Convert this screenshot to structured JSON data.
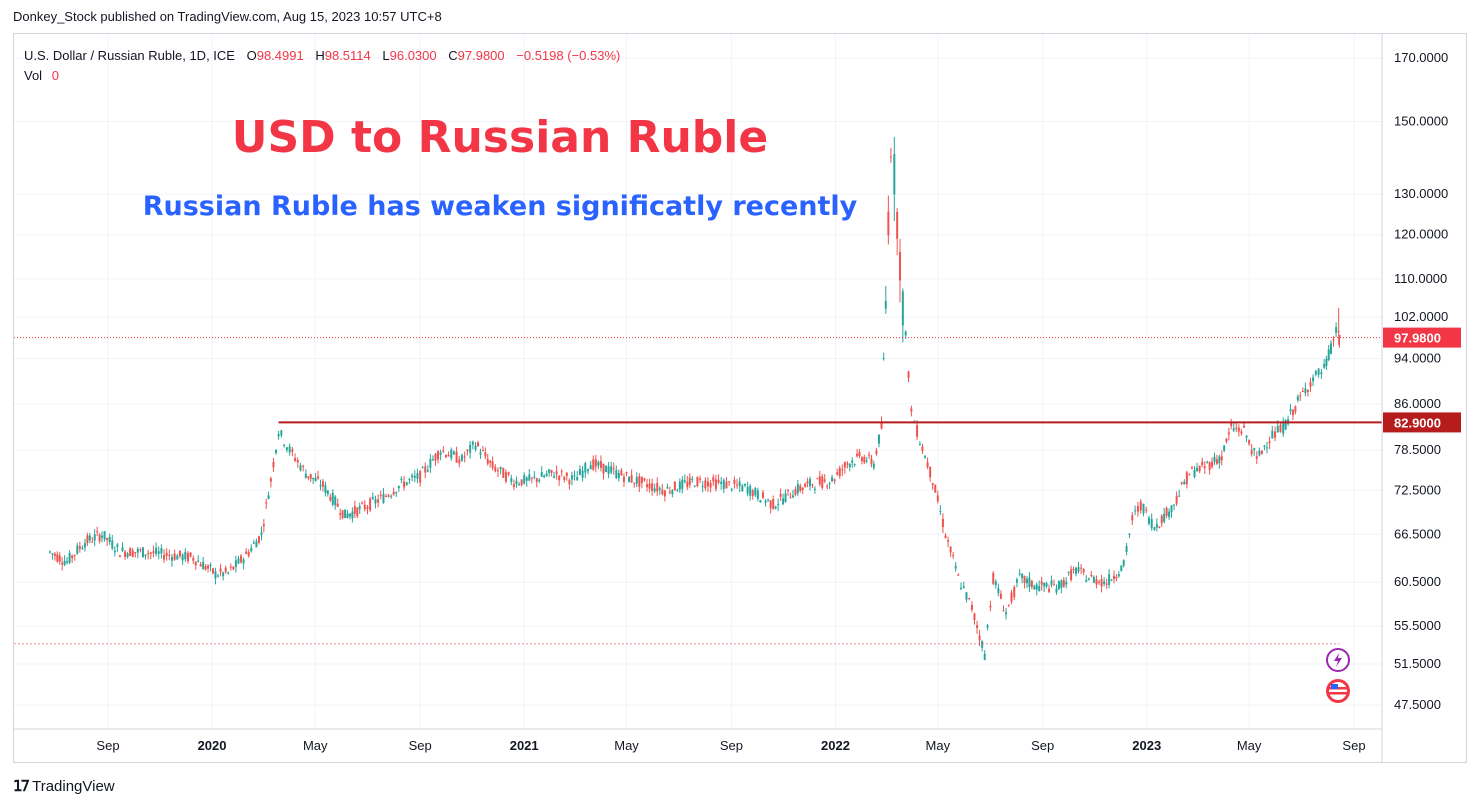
{
  "caption": "Donkey_Stock published on TradingView.com, Aug 15, 2023 10:57 UTC+8",
  "branding": "TradingView",
  "legend": {
    "symbol": "U.S. Dollar / Russian Ruble, 1D, ICE",
    "open_label": "O",
    "open": "98.4991",
    "high_label": "H",
    "high": "98.5114",
    "low_label": "L",
    "low": "96.0300",
    "close_label": "C",
    "close": "97.9800",
    "change": "−0.5198 (−0.53%)",
    "vol_label": "Vol",
    "vol": "0"
  },
  "colors": {
    "up": "#26a69a",
    "down": "#ef5350",
    "title": "#f23645",
    "subtitle": "#2962ff",
    "level_line": "#b71c1c",
    "price_tag": "#f23645",
    "grid": "#f0f3fa"
  },
  "icons": [
    "lightning-icon",
    "us-flag-icon"
  ],
  "chart_data": {
    "type": "candlestick",
    "title": "USD to Russian Ruble",
    "subtitle": "Russian Ruble has weaken significatly recently",
    "y_scale": "log",
    "y_ticks": [
      "170.0000",
      "150.0000",
      "130.0000",
      "120.0000",
      "110.0000",
      "102.0000",
      "94.0000",
      "86.0000",
      "78.5000",
      "72.5000",
      "66.5000",
      "60.5000",
      "55.5000",
      "51.5000",
      "47.5000"
    ],
    "x_ticks": [
      "Sep",
      "2020",
      "May",
      "Sep",
      "2021",
      "May",
      "Sep",
      "2022",
      "May",
      "Sep",
      "2023",
      "May",
      "Sep"
    ],
    "x_range": [
      "2019-07",
      "2023-09"
    ],
    "current_price": "97.9800",
    "horizontal_level": {
      "value": 82.9,
      "label": "82.9000"
    },
    "series": [
      {
        "name": "USD/RUB",
        "points": [
          [
            "2019-06-25",
            64.2
          ],
          [
            "2019-07-15",
            63.0
          ],
          [
            "2019-08-05",
            65.5
          ],
          [
            "2019-08-25",
            66.5
          ],
          [
            "2019-09-15",
            64.3
          ],
          [
            "2019-10-15",
            64.2
          ],
          [
            "2019-11-15",
            63.8
          ],
          [
            "2019-12-10",
            63.5
          ],
          [
            "2020-01-05",
            61.5
          ],
          [
            "2020-01-20",
            61.6
          ],
          [
            "2020-02-10",
            63.8
          ],
          [
            "2020-02-28",
            66.5
          ],
          [
            "2020-03-10",
            74.0
          ],
          [
            "2020-03-19",
            81.5
          ],
          [
            "2020-04-01",
            78.5
          ],
          [
            "2020-04-20",
            75.0
          ],
          [
            "2020-05-10",
            73.2
          ],
          [
            "2020-06-05",
            69.0
          ],
          [
            "2020-06-25",
            70.0
          ],
          [
            "2020-07-20",
            71.5
          ],
          [
            "2020-08-10",
            73.4
          ],
          [
            "2020-09-01",
            74.5
          ],
          [
            "2020-09-25",
            78.5
          ],
          [
            "2020-10-20",
            77.0
          ],
          [
            "2020-11-05",
            79.5
          ],
          [
            "2020-11-25",
            76.0
          ],
          [
            "2020-12-20",
            73.8
          ],
          [
            "2021-01-10",
            74.0
          ],
          [
            "2021-02-05",
            75.0
          ],
          [
            "2021-03-01",
            74.0
          ],
          [
            "2021-03-20",
            76.5
          ],
          [
            "2021-04-10",
            75.5
          ],
          [
            "2021-05-10",
            74.0
          ],
          [
            "2021-06-15",
            72.5
          ],
          [
            "2021-07-20",
            73.8
          ],
          [
            "2021-08-20",
            73.5
          ],
          [
            "2021-09-20",
            72.8
          ],
          [
            "2021-10-20",
            70.5
          ],
          [
            "2021-11-15",
            72.5
          ],
          [
            "2021-12-05",
            73.5
          ],
          [
            "2021-12-28",
            74.0
          ],
          [
            "2022-01-15",
            76.5
          ],
          [
            "2022-02-01",
            77.5
          ],
          [
            "2022-02-15",
            76.5
          ],
          [
            "2022-02-24",
            82.0
          ],
          [
            "2022-03-01",
            105.0
          ],
          [
            "2022-03-07",
            145.0
          ],
          [
            "2022-03-11",
            135.0
          ],
          [
            "2022-03-21",
            105.0
          ],
          [
            "2022-03-31",
            84.5
          ],
          [
            "2022-04-10",
            80.0
          ],
          [
            "2022-04-25",
            74.0
          ],
          [
            "2022-05-10",
            66.5
          ],
          [
            "2022-05-25",
            61.0
          ],
          [
            "2022-06-10",
            57.5
          ],
          [
            "2022-06-25",
            52.5
          ],
          [
            "2022-07-05",
            61.0
          ],
          [
            "2022-07-20",
            57.0
          ],
          [
            "2022-08-05",
            61.0
          ],
          [
            "2022-08-25",
            60.0
          ],
          [
            "2022-09-20",
            60.0
          ],
          [
            "2022-10-10",
            62.0
          ],
          [
            "2022-10-25",
            61.0
          ],
          [
            "2022-11-15",
            60.5
          ],
          [
            "2022-12-05",
            62.5
          ],
          [
            "2022-12-15",
            68.5
          ],
          [
            "2022-12-25",
            70.5
          ],
          [
            "2023-01-10",
            67.5
          ],
          [
            "2023-01-30",
            70.0
          ],
          [
            "2023-02-20",
            75.0
          ],
          [
            "2023-03-10",
            76.0
          ],
          [
            "2023-03-30",
            77.5
          ],
          [
            "2023-04-10",
            82.0
          ],
          [
            "2023-04-25",
            81.5
          ],
          [
            "2023-05-10",
            77.0
          ],
          [
            "2023-05-25",
            80.5
          ],
          [
            "2023-06-10",
            82.0
          ],
          [
            "2023-06-30",
            87.0
          ],
          [
            "2023-07-15",
            90.5
          ],
          [
            "2023-07-28",
            92.0
          ],
          [
            "2023-08-05",
            96.0
          ],
          [
            "2023-08-14",
            101.0
          ],
          [
            "2023-08-15",
            97.98
          ]
        ]
      }
    ]
  }
}
